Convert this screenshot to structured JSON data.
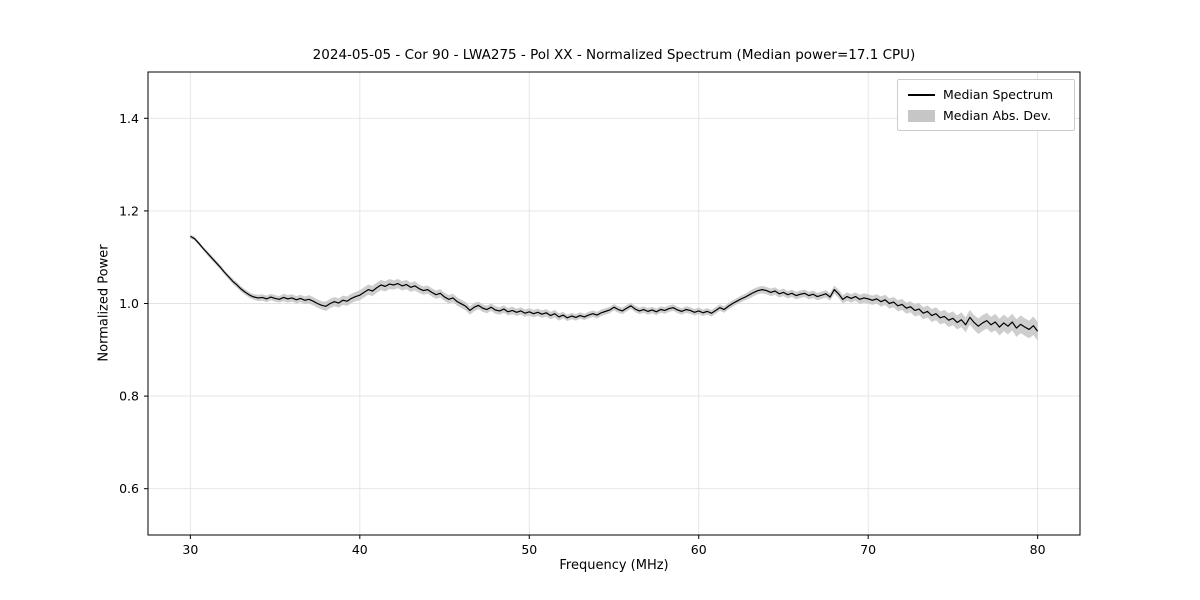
{
  "figure": {
    "title": "2024-05-05 - Cor 90 - LWA275 - Pol XX - Normalized Spectrum (Median power=17.1 CPU)",
    "xlabel": "Frequency (MHz)",
    "ylabel": "Normalized Power",
    "background": "#ffffff"
  },
  "legend": {
    "items": [
      {
        "label": "Median Spectrum",
        "type": "line",
        "color": "#000000"
      },
      {
        "label": "Median Abs. Dev.",
        "type": "patch",
        "color": "#c6c6c6"
      }
    ]
  },
  "chart_data": {
    "type": "line",
    "title": "2024-05-05 - Cor 90 - LWA275 - Pol XX - Normalized Spectrum (Median power=17.1 CPU)",
    "xlabel": "Frequency (MHz)",
    "ylabel": "Normalized Power",
    "xlim": [
      27.5,
      82.5
    ],
    "ylim": [
      0.5,
      1.5
    ],
    "xtick_values": [
      30,
      40,
      50,
      60,
      70,
      80
    ],
    "xtick_labels": [
      "30",
      "40",
      "50",
      "60",
      "70",
      "80"
    ],
    "ytick_values": [
      0.6,
      0.8,
      1.0,
      1.2,
      1.4
    ],
    "ytick_labels": [
      "0.6",
      "0.8",
      "1.0",
      "1.2",
      "1.4"
    ],
    "grid": true,
    "legend_position": "upper right",
    "line_color": "#000000",
    "band_color": "#c6c6c6",
    "x_start": 30.0,
    "x_step": 0.25,
    "series": [
      {
        "name": "Median Spectrum",
        "values": [
          1.145,
          1.14,
          1.13,
          1.119,
          1.109,
          1.099,
          1.089,
          1.079,
          1.068,
          1.058,
          1.048,
          1.04,
          1.031,
          1.024,
          1.018,
          1.014,
          1.012,
          1.013,
          1.01,
          1.014,
          1.011,
          1.009,
          1.013,
          1.01,
          1.012,
          1.008,
          1.011,
          1.007,
          1.009,
          1.005,
          1.0,
          0.996,
          0.994,
          1.0,
          1.004,
          1.001,
          1.007,
          1.005,
          1.011,
          1.015,
          1.018,
          1.024,
          1.03,
          1.027,
          1.034,
          1.04,
          1.037,
          1.042,
          1.04,
          1.043,
          1.038,
          1.041,
          1.035,
          1.038,
          1.032,
          1.028,
          1.03,
          1.024,
          1.019,
          1.022,
          1.014,
          1.009,
          1.012,
          1.004,
          0.999,
          0.994,
          0.985,
          0.992,
          0.996,
          0.99,
          0.987,
          0.992,
          0.986,
          0.984,
          0.988,
          0.982,
          0.985,
          0.981,
          0.984,
          0.979,
          0.982,
          0.978,
          0.981,
          0.977,
          0.98,
          0.974,
          0.978,
          0.971,
          0.975,
          0.969,
          0.973,
          0.97,
          0.974,
          0.971,
          0.975,
          0.978,
          0.975,
          0.98,
          0.983,
          0.986,
          0.992,
          0.987,
          0.984,
          0.99,
          0.995,
          0.988,
          0.984,
          0.987,
          0.983,
          0.986,
          0.982,
          0.987,
          0.985,
          0.989,
          0.991,
          0.986,
          0.983,
          0.987,
          0.985,
          0.981,
          0.984,
          0.98,
          0.983,
          0.979,
          0.985,
          0.991,
          0.987,
          0.994,
          1.0,
          1.005,
          1.01,
          1.014,
          1.019,
          1.024,
          1.028,
          1.03,
          1.028,
          1.024,
          1.027,
          1.021,
          1.024,
          1.019,
          1.022,
          1.017,
          1.02,
          1.022,
          1.017,
          1.02,
          1.015,
          1.018,
          1.021,
          1.014,
          1.03,
          1.021,
          1.009,
          1.015,
          1.011,
          1.015,
          1.009,
          1.012,
          1.01,
          1.007,
          1.01,
          1.004,
          1.008,
          1.0,
          1.003,
          0.995,
          0.998,
          0.99,
          0.993,
          0.985,
          0.988,
          0.979,
          0.983,
          0.974,
          0.978,
          0.969,
          0.972,
          0.964,
          0.968,
          0.959,
          0.965,
          0.954,
          0.97,
          0.959,
          0.951,
          0.958,
          0.963,
          0.954,
          0.96,
          0.949,
          0.958,
          0.951,
          0.96,
          0.947,
          0.955,
          0.949,
          0.944,
          0.952,
          0.94
        ]
      },
      {
        "name": "Median Abs. Dev. (half-width)",
        "values": [
          0.004,
          0.004,
          0.004,
          0.004,
          0.005,
          0.005,
          0.005,
          0.005,
          0.005,
          0.005,
          0.006,
          0.006,
          0.006,
          0.006,
          0.006,
          0.006,
          0.007,
          0.007,
          0.007,
          0.007,
          0.007,
          0.007,
          0.008,
          0.008,
          0.008,
          0.008,
          0.008,
          0.008,
          0.009,
          0.009,
          0.009,
          0.009,
          0.01,
          0.01,
          0.01,
          0.01,
          0.01,
          0.01,
          0.01,
          0.01,
          0.011,
          0.011,
          0.011,
          0.011,
          0.011,
          0.011,
          0.011,
          0.011,
          0.01,
          0.01,
          0.01,
          0.01,
          0.01,
          0.01,
          0.009,
          0.009,
          0.009,
          0.009,
          0.009,
          0.009,
          0.009,
          0.009,
          0.009,
          0.009,
          0.009,
          0.009,
          0.009,
          0.009,
          0.008,
          0.008,
          0.008,
          0.008,
          0.008,
          0.008,
          0.008,
          0.008,
          0.008,
          0.008,
          0.008,
          0.008,
          0.008,
          0.008,
          0.008,
          0.008,
          0.008,
          0.008,
          0.008,
          0.008,
          0.007,
          0.007,
          0.007,
          0.007,
          0.007,
          0.007,
          0.007,
          0.007,
          0.007,
          0.007,
          0.007,
          0.007,
          0.007,
          0.007,
          0.007,
          0.007,
          0.007,
          0.007,
          0.007,
          0.007,
          0.007,
          0.007,
          0.007,
          0.007,
          0.007,
          0.007,
          0.007,
          0.007,
          0.007,
          0.007,
          0.007,
          0.007,
          0.007,
          0.007,
          0.007,
          0.007,
          0.007,
          0.007,
          0.007,
          0.007,
          0.007,
          0.007,
          0.007,
          0.007,
          0.008,
          0.008,
          0.008,
          0.008,
          0.008,
          0.008,
          0.008,
          0.008,
          0.008,
          0.008,
          0.008,
          0.008,
          0.008,
          0.008,
          0.008,
          0.008,
          0.008,
          0.008,
          0.008,
          0.008,
          0.009,
          0.009,
          0.009,
          0.009,
          0.009,
          0.009,
          0.01,
          0.01,
          0.01,
          0.01,
          0.01,
          0.011,
          0.011,
          0.011,
          0.011,
          0.012,
          0.012,
          0.012,
          0.012,
          0.013,
          0.013,
          0.013,
          0.013,
          0.014,
          0.014,
          0.014,
          0.014,
          0.015,
          0.015,
          0.015,
          0.016,
          0.016,
          0.016,
          0.016,
          0.017,
          0.017,
          0.017,
          0.017,
          0.018,
          0.018,
          0.018,
          0.018,
          0.018,
          0.019,
          0.019,
          0.019,
          0.019,
          0.02,
          0.02
        ]
      }
    ]
  }
}
